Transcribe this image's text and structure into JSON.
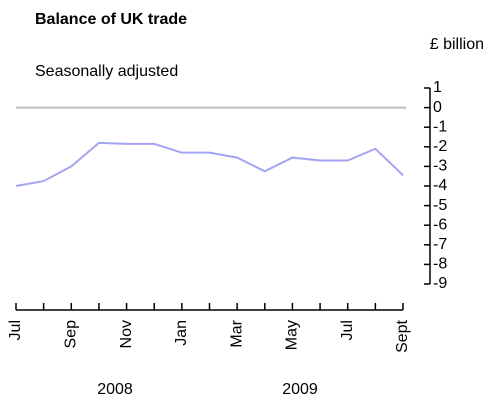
{
  "chart_data": {
    "type": "line",
    "title": "Balance of UK trade",
    "subtitle": "Seasonally adjusted",
    "unit_label": "£ billion",
    "categories": [
      "Jul",
      null,
      "Sep",
      null,
      "Nov",
      null,
      "Jan",
      null,
      "Mar",
      null,
      "May",
      null,
      "Jul",
      null,
      "Sept"
    ],
    "year_labels": [
      "2008",
      "2009"
    ],
    "series": [
      {
        "color": "#a4a4f2",
        "values": [
          -4.0,
          -3.75,
          -3.0,
          -1.8,
          -1.85,
          -1.85,
          -2.3,
          -2.3,
          -2.55,
          -3.25,
          -2.55,
          -2.7,
          -2.7,
          -2.1,
          -3.45
        ]
      }
    ],
    "ylim": [
      -9,
      1
    ],
    "yticks": [
      1,
      0,
      -1,
      -2,
      -3,
      -4,
      -5,
      -6,
      -7,
      -8,
      -9
    ],
    "hline": 0,
    "hline_color": "#bdbdbd"
  }
}
